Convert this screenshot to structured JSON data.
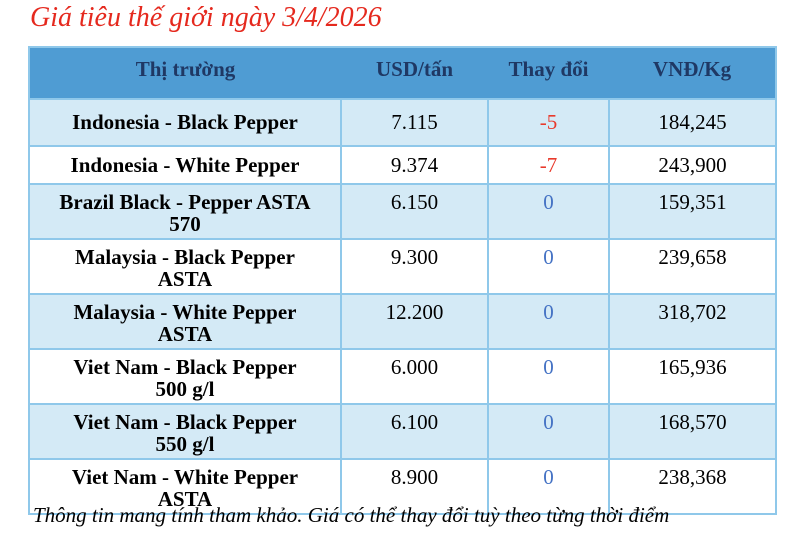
{
  "title": "Giá tiêu thế giới ngày 3/4/2026",
  "footer_note": "Thông tin mang tính tham khảo. Giá có thể thay đổi tuỳ theo từng thời điểm",
  "table": {
    "columns": [
      "Thị trường",
      "USD/tấn",
      "Thay đổi",
      "VNĐ/Kg"
    ],
    "rows": [
      {
        "market": "Indonesia - Black Pepper",
        "usd": "7.115",
        "change": "-5",
        "vnd": "184,245"
      },
      {
        "market": "Indonesia - White Pepper",
        "usd": "9.374",
        "change": "-7",
        "vnd": "243,900"
      },
      {
        "market": "Brazil Black - Pepper ASTA 570",
        "usd": "6.150",
        "change": "0",
        "vnd": "159,351"
      },
      {
        "market": "Malaysia - Black Pepper ASTA",
        "usd": "9.300",
        "change": "0",
        "vnd": "239,658"
      },
      {
        "market": "Malaysia - White Pepper ASTA",
        "usd": "12.200",
        "change": "0",
        "vnd": "318,702"
      },
      {
        "market": "Viet Nam - Black Pepper 500 g/l",
        "usd": "6.000",
        "change": "0",
        "vnd": "165,936"
      },
      {
        "market": "Viet Nam - Black Pepper 550 g/l",
        "usd": "6.100",
        "change": "0",
        "vnd": "168,570"
      },
      {
        "market": "Viet Nam - White Pepper ASTA",
        "usd": "8.900",
        "change": "0",
        "vnd": "238,368"
      }
    ]
  },
  "colors": {
    "title_red": "#e5291e",
    "header_bg": "#4f9cd3",
    "header_text": "#1f3864",
    "row_alt_bg": "#d4eaf6",
    "border_blue": "#8fc8ea",
    "change_negative": "#e8392b",
    "change_zero": "#4472c4",
    "value_text": "#000000"
  }
}
